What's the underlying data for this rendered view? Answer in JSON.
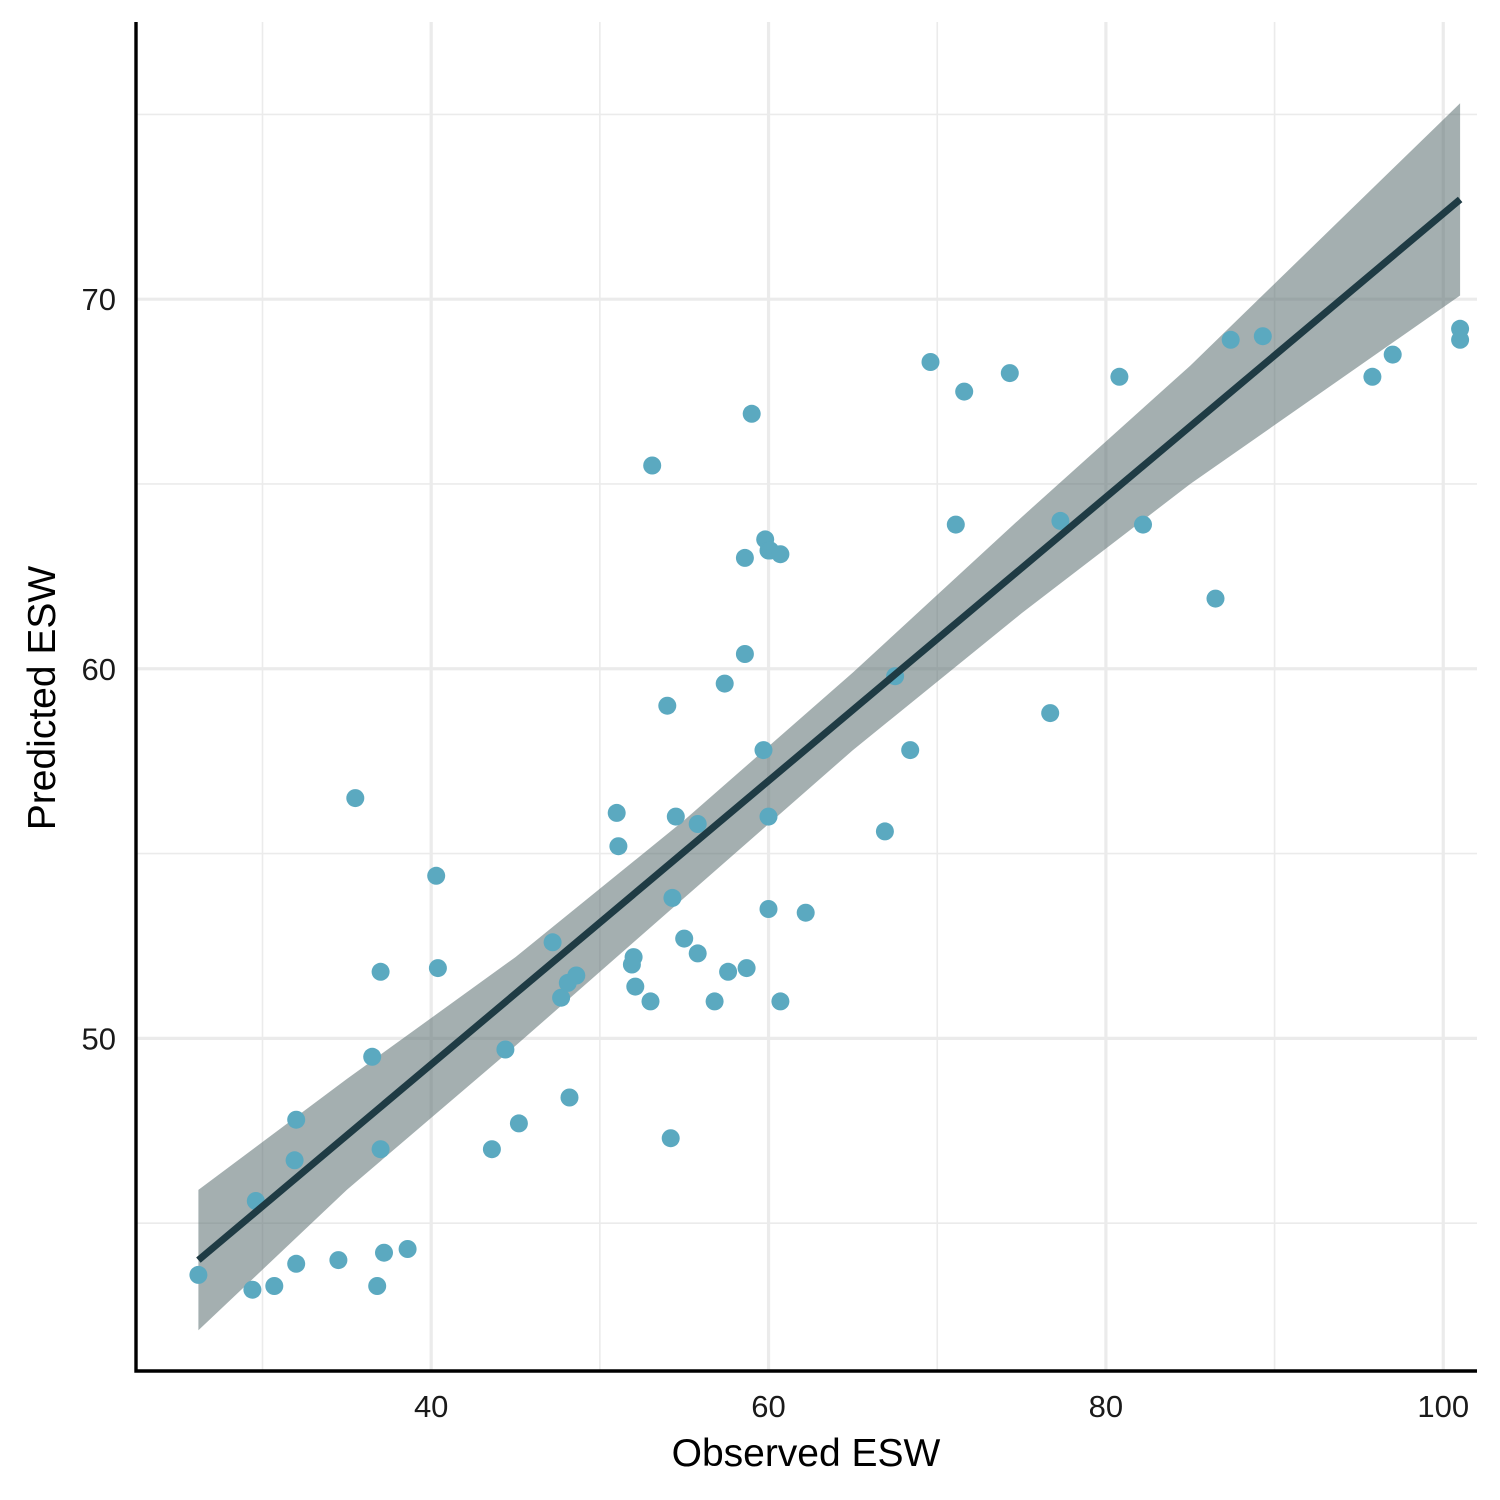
{
  "chart_data": {
    "type": "scatter",
    "xlabel": "Observed ESW",
    "ylabel": "Predicted ESW",
    "xlim": [
      22.5,
      102
    ],
    "ylim": [
      41,
      77.5
    ],
    "x_ticks": [
      40,
      60,
      80,
      100
    ],
    "x_tick_labels": [
      "40",
      "60",
      "80",
      "100"
    ],
    "x_minor_ticks": [
      30,
      50,
      70,
      90
    ],
    "y_ticks": [
      50,
      60,
      70
    ],
    "y_tick_labels": [
      "50",
      "60",
      "70"
    ],
    "y_minor_ticks": [
      45,
      55,
      65,
      75
    ],
    "grid": true,
    "colors": {
      "points": "#5ba9c0",
      "fit_line": "#1f3b44",
      "confidence_band": "#5a6d70"
    },
    "points": {
      "x": [
        26.2,
        29.4,
        29.6,
        30.7,
        31.9,
        32.0,
        32.0,
        34.5,
        35.5,
        36.5,
        36.8,
        37.0,
        37.0,
        37.2,
        38.6,
        40.3,
        40.4,
        43.6,
        44.4,
        45.2,
        47.2,
        47.7,
        48.1,
        48.2,
        48.6,
        51.0,
        51.1,
        51.9,
        52.0,
        52.1,
        53.0,
        53.1,
        54.0,
        54.2,
        54.3,
        54.5,
        55.0,
        55.8,
        55.8,
        56.8,
        57.4,
        57.6,
        58.6,
        58.6,
        58.7,
        59.0,
        59.7,
        59.8,
        60.0,
        60.0,
        60.0,
        60.1,
        60.7,
        60.7,
        62.2,
        66.9,
        67.5,
        68.4,
        69.6,
        71.1,
        71.6,
        74.3,
        76.7,
        77.3,
        80.8,
        82.2,
        86.5,
        87.4,
        89.3,
        95.8,
        97.0,
        101.0,
        101.0
      ],
      "y": [
        43.6,
        43.2,
        45.6,
        43.3,
        46.7,
        47.8,
        43.9,
        44.0,
        56.5,
        49.5,
        43.3,
        47.0,
        51.8,
        44.2,
        44.3,
        54.4,
        51.9,
        47.0,
        49.7,
        47.7,
        52.6,
        51.1,
        51.5,
        48.4,
        51.7,
        56.1,
        55.2,
        52.0,
        52.2,
        51.4,
        51.0,
        65.5,
        59.0,
        47.3,
        53.8,
        56.0,
        52.7,
        52.3,
        55.8,
        51.0,
        59.6,
        51.8,
        63.0,
        60.4,
        51.9,
        66.9,
        57.8,
        63.5,
        63.2,
        56.0,
        53.5,
        63.2,
        51.0,
        63.1,
        53.4,
        55.6,
        59.8,
        57.8,
        68.3,
        63.9,
        67.5,
        68.0,
        58.8,
        64.0,
        67.9,
        63.9,
        61.9,
        68.9,
        69.0,
        67.9,
        68.5,
        69.2,
        68.9
      ]
    },
    "fit_line": {
      "x": [
        26.2,
        101.0
      ],
      "y": [
        44.0,
        72.7
      ]
    },
    "confidence_band": {
      "x": [
        26.2,
        35.0,
        45.0,
        55.0,
        65.0,
        75.0,
        85.0,
        101.0
      ],
      "lower": [
        42.1,
        45.9,
        49.8,
        53.8,
        57.8,
        61.5,
        65.0,
        70.1
      ],
      "upper": [
        45.9,
        48.9,
        52.2,
        55.9,
        59.9,
        64.1,
        68.2,
        75.3
      ]
    }
  }
}
